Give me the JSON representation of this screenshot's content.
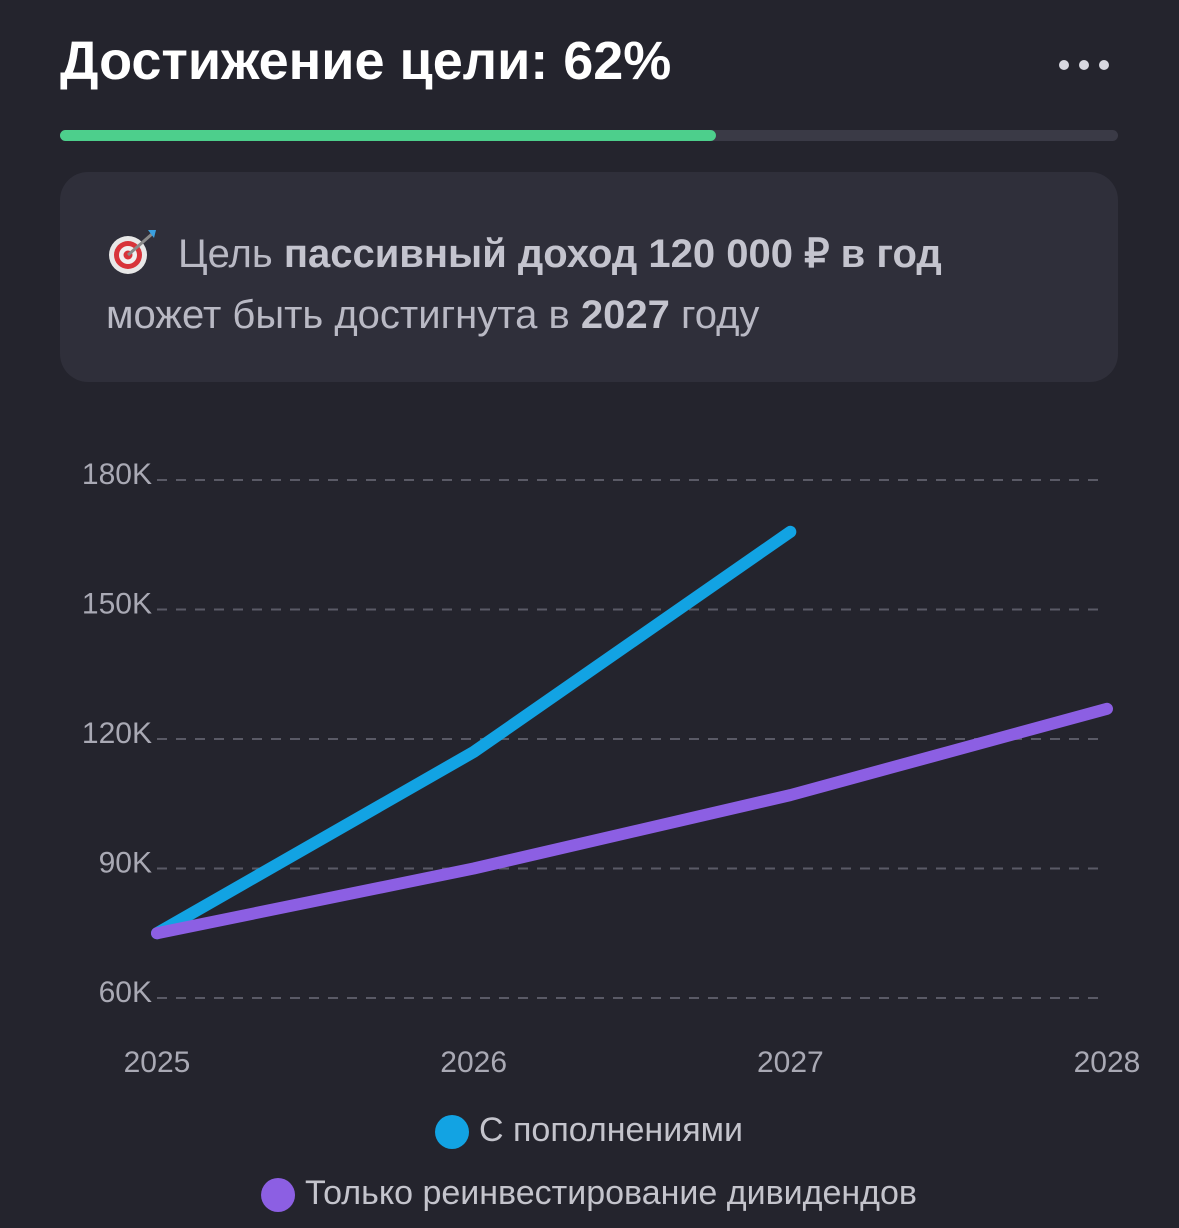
{
  "header": {
    "title": "Достижение цели: 62%",
    "progress": 62
  },
  "info": {
    "prefix": "Цель",
    "goal": "пассивный доход 120 000 ₽ в год",
    "line2_prefix": "может быть достигнута в",
    "year": "2027",
    "line2_suffix": "году"
  },
  "chart_data": {
    "type": "line",
    "categories": [
      "2025",
      "2026",
      "2027",
      "2028"
    ],
    "series": [
      {
        "name": "С пополнениями",
        "color": "#12a3e3",
        "values": [
          75000,
          117000,
          168000,
          null
        ]
      },
      {
        "name": "Только реинвестирование дивидендов",
        "color": "#8c5fe3",
        "values": [
          75000,
          90000,
          107000,
          127000
        ]
      }
    ],
    "ylim": [
      60000,
      180000
    ],
    "yticks": [
      {
        "value": 60000,
        "label": "60K"
      },
      {
        "value": 90000,
        "label": "90K"
      },
      {
        "value": 120000,
        "label": "120K"
      },
      {
        "value": 150000,
        "label": "150K"
      },
      {
        "value": 180000,
        "label": "180K"
      }
    ],
    "grid": true
  }
}
